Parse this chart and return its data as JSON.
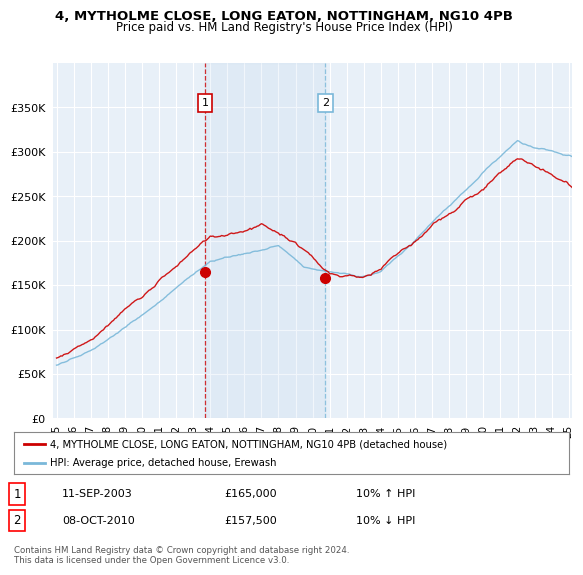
{
  "title": "4, MYTHOLME CLOSE, LONG EATON, NOTTINGHAM, NG10 4PB",
  "subtitle": "Price paid vs. HM Land Registry's House Price Index (HPI)",
  "legend_line1": "4, MYTHOLME CLOSE, LONG EATON, NOTTINGHAM, NG10 4PB (detached house)",
  "legend_line2": "HPI: Average price, detached house, Erewash",
  "transaction1_date": "11-SEP-2003",
  "transaction1_price": "£165,000",
  "transaction1_hpi": "10% ↑ HPI",
  "transaction2_date": "08-OCT-2010",
  "transaction2_price": "£157,500",
  "transaction2_hpi": "10% ↓ HPI",
  "footer": "Contains HM Land Registry data © Crown copyright and database right 2024.\nThis data is licensed under the Open Government Licence v3.0.",
  "hpi_color": "#7ab8d9",
  "price_color": "#cc0000",
  "transaction1_x": 2003.7,
  "transaction1_y": 165000,
  "transaction2_x": 2010.75,
  "transaction2_y": 157500,
  "ylim": [
    0,
    400000
  ],
  "xlim": [
    1994.8,
    2025.2
  ],
  "plot_bg_color": "#e8f0f8",
  "grid_color": "#ffffff"
}
